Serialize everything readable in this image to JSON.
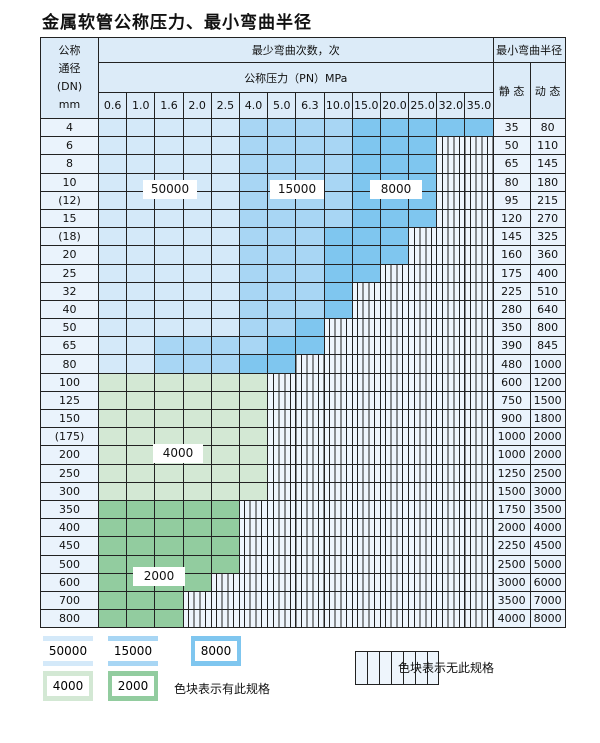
{
  "title": "金属软管公称压力、最小弯曲半径",
  "header": {
    "dn_lines": [
      "公称",
      "通径",
      "(DN)",
      "mm"
    ],
    "cycles_title": "最少弯曲次数，次",
    "pressure_title": "公称压力（PN）MPa",
    "radius_title": "最小弯曲半径",
    "static": "静 态",
    "dynamic": "动 态",
    "pressures": [
      "0.6",
      "1.0",
      "1.6",
      "2.0",
      "2.5",
      "4.0",
      "5.0",
      "6.3",
      "10.0",
      "15.0",
      "20.0",
      "25.0",
      "32.0",
      "35.0"
    ]
  },
  "colors": {
    "50000": "#d4e9f9",
    "15000": "#a8d6f4",
    "8000": "#7fc6ef",
    "4000": "#d3e8d4",
    "2000": "#92cc9f",
    "none": "#eef5fc"
  },
  "cell_codes": {
    "a": "50000",
    "b": "15000",
    "c": "8000",
    "d": "4000",
    "e": "2000",
    "x": "无此规格"
  },
  "rows": [
    {
      "dn": "4",
      "cells": "aaaaabbbbccccc",
      "static": "35",
      "dynamic": "80"
    },
    {
      "dn": "6",
      "cells": "aaaaabbbbccc",
      "static": "50",
      "dynamic": "110"
    },
    {
      "dn": "8",
      "cells": "aaaaabbbbccc",
      "static": "65",
      "dynamic": "145"
    },
    {
      "dn": "10",
      "cells": "aaaaabbbbccc",
      "static": "80",
      "dynamic": "180"
    },
    {
      "dn": "(12)",
      "cells": "aaaaabbbbccc",
      "static": "95",
      "dynamic": "215"
    },
    {
      "dn": "15",
      "cells": "aaaaabbbbccc",
      "static": "120",
      "dynamic": "270"
    },
    {
      "dn": "(18)",
      "cells": "aaaaabbbccc",
      "static": "145",
      "dynamic": "325"
    },
    {
      "dn": "20",
      "cells": "aaaaabbbccc",
      "static": "160",
      "dynamic": "360"
    },
    {
      "dn": "25",
      "cells": "aaaaabbbcc",
      "static": "175",
      "dynamic": "400"
    },
    {
      "dn": "32",
      "cells": "aaaaabbbc",
      "static": "225",
      "dynamic": "510"
    },
    {
      "dn": "40",
      "cells": "aaaaabbbc",
      "static": "280",
      "dynamic": "640"
    },
    {
      "dn": "50",
      "cells": "aaaaabbc",
      "static": "350",
      "dynamic": "800"
    },
    {
      "dn": "65",
      "cells": "aabbbbcc",
      "static": "390",
      "dynamic": "845"
    },
    {
      "dn": "80",
      "cells": "aabbbcc",
      "static": "480",
      "dynamic": "1000"
    },
    {
      "dn": "100",
      "cells": "dddddd",
      "static": "600",
      "dynamic": "1200"
    },
    {
      "dn": "125",
      "cells": "dddddd",
      "static": "750",
      "dynamic": "1500"
    },
    {
      "dn": "150",
      "cells": "dddddd",
      "static": "900",
      "dynamic": "1800"
    },
    {
      "dn": "(175)",
      "cells": "dddddd",
      "static": "1000",
      "dynamic": "2000"
    },
    {
      "dn": "200",
      "cells": "dddddd",
      "static": "1000",
      "dynamic": "2000"
    },
    {
      "dn": "250",
      "cells": "dddddd",
      "static": "1250",
      "dynamic": "2500"
    },
    {
      "dn": "300",
      "cells": "dddddd",
      "static": "1500",
      "dynamic": "3000"
    },
    {
      "dn": "350",
      "cells": "eeeee",
      "static": "1750",
      "dynamic": "3500"
    },
    {
      "dn": "400",
      "cells": "eeeee",
      "static": "2000",
      "dynamic": "4000"
    },
    {
      "dn": "450",
      "cells": "eeeee",
      "static": "2250",
      "dynamic": "4500"
    },
    {
      "dn": "500",
      "cells": "eeeee",
      "static": "2500",
      "dynamic": "5000"
    },
    {
      "dn": "600",
      "cells": "eeee",
      "static": "3000",
      "dynamic": "6000"
    },
    {
      "dn": "700",
      "cells": "eee",
      "static": "3500",
      "dynamic": "7000"
    },
    {
      "dn": "800",
      "cells": "eee",
      "static": "4000",
      "dynamic": "8000"
    }
  ],
  "region_labels": {
    "l50000": "50000",
    "l15000": "15000",
    "l8000": "8000",
    "l4000": "4000",
    "l2000": "2000"
  },
  "legend": {
    "items": [
      "50000",
      "15000",
      "8000",
      "4000",
      "2000"
    ],
    "has_spec_text": "色块表示有此规格",
    "no_spec_text": "色块表示无此规格"
  }
}
